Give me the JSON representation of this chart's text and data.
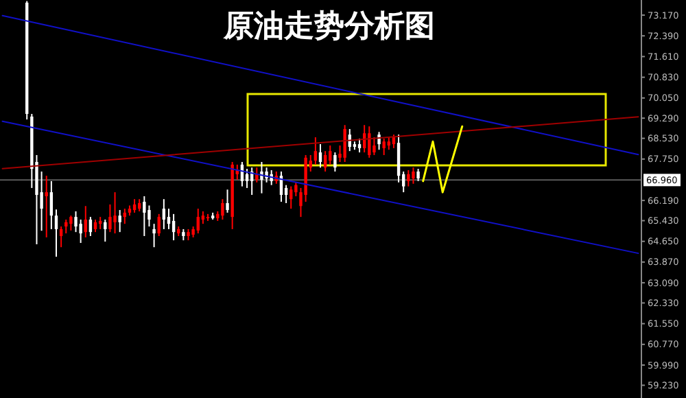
{
  "chart_data": {
    "type": "candlestick",
    "title": "原油走势分析图",
    "categories": [
      null,
      null,
      null,
      null,
      null,
      null,
      null,
      null,
      null,
      null,
      null,
      null,
      null,
      null,
      null,
      null,
      null,
      null,
      null,
      null,
      null,
      null,
      null,
      null,
      null,
      null,
      null,
      null,
      null,
      null,
      null,
      null,
      null,
      null,
      null,
      null,
      null,
      null,
      null,
      null,
      null,
      null,
      null,
      null,
      null,
      null,
      null,
      null,
      null,
      null,
      null,
      null,
      null,
      null,
      null,
      null,
      null,
      null,
      null,
      null,
      null,
      null,
      null,
      null,
      null,
      null,
      null,
      null,
      null,
      null,
      null,
      null,
      null,
      null,
      null,
      null,
      null,
      null,
      null,
      null,
      null,
      null,
      null,
      null,
      null,
      null,
      null,
      null,
      null,
      null,
      null,
      null,
      null,
      null,
      null,
      null,
      null,
      null,
      null,
      null,
      null,
      null,
      null,
      null,
      null,
      null,
      null,
      null,
      null,
      null,
      null,
      null,
      null,
      null,
      null,
      null,
      null,
      null,
      null,
      null,
      null,
      null,
      null,
      null,
      null,
      null,
      null,
      null,
      null,
      null,
      null
    ],
    "ohlc": [
      null,
      null,
      null,
      null,
      null,
      [
        73.64,
        73.7,
        69.24,
        69.45
      ],
      [
        69.35,
        69.45,
        66.66,
        67.38
      ],
      [
        67.64,
        67.9,
        64.54,
        66.4
      ],
      [
        66.5,
        67.28,
        65.05,
        65.88
      ],
      [
        66.35,
        67.12,
        64.8,
        66.5
      ],
      [
        66.5,
        66.92,
        65.11,
        65.62
      ],
      [
        65.62,
        65.85,
        64.07,
        65.11
      ],
      [
        64.85,
        65.21,
        64.43,
        65.11
      ],
      [
        65.21,
        65.47,
        64.95,
        65.37
      ],
      [
        65.31,
        65.62,
        65.06,
        65.57
      ],
      [
        65.57,
        65.78,
        65.0,
        65.21
      ],
      [
        65.31,
        65.47,
        64.59,
        64.95
      ],
      [
        65.0,
        65.98,
        64.8,
        65.47
      ],
      [
        65.47,
        65.57,
        64.85,
        65.0
      ],
      [
        65.11,
        65.47,
        65.0,
        65.37
      ],
      [
        65.31,
        65.57,
        65.11,
        65.42
      ],
      [
        65.37,
        65.47,
        64.64,
        65.11
      ],
      [
        65.11,
        66.04,
        65.0,
        65.57
      ],
      [
        65.37,
        66.5,
        64.95,
        65.62
      ],
      [
        65.62,
        65.83,
        65.0,
        65.37
      ],
      [
        65.57,
        65.88,
        65.31,
        65.73
      ],
      [
        65.73,
        66.0,
        65.62,
        65.88
      ],
      [
        65.83,
        66.24,
        65.73,
        66.04
      ],
      [
        65.88,
        66.24,
        65.78,
        66.09
      ],
      [
        66.14,
        66.35,
        64.85,
        65.73
      ],
      [
        65.83,
        66.0,
        65.21,
        65.47
      ],
      [
        65.11,
        65.31,
        64.43,
        64.95
      ],
      [
        64.95,
        65.68,
        64.85,
        65.57
      ],
      [
        65.88,
        66.24,
        65.11,
        65.47
      ],
      [
        65.57,
        65.88,
        65.11,
        65.31
      ],
      [
        65.42,
        65.68,
        64.69,
        65.0
      ],
      [
        64.95,
        65.21,
        64.85,
        65.11
      ],
      [
        65.0,
        65.11,
        64.69,
        64.85
      ],
      [
        64.85,
        65.11,
        64.69,
        65.0
      ],
      [
        64.9,
        65.21,
        64.8,
        65.11
      ],
      [
        65.06,
        65.88,
        64.95,
        65.57
      ],
      [
        65.47,
        65.78,
        65.31,
        65.62
      ],
      [
        65.52,
        65.68,
        65.42,
        65.57
      ],
      [
        65.62,
        65.73,
        65.47,
        65.52
      ],
      [
        65.52,
        65.78,
        65.42,
        65.68
      ],
      [
        65.62,
        66.24,
        65.47,
        66.09
      ],
      [
        66.09,
        66.6,
        65.73,
        65.83
      ],
      [
        65.57,
        67.64,
        65.11,
        67.54
      ],
      [
        67.18,
        67.54,
        66.97,
        67.33
      ],
      [
        67.54,
        67.64,
        66.72,
        66.92
      ],
      [
        67.18,
        67.38,
        66.66,
        66.92
      ],
      [
        67.28,
        67.43,
        66.4,
        66.92
      ],
      [
        66.97,
        67.43,
        66.87,
        67.18
      ],
      [
        67.28,
        67.64,
        66.46,
        66.97
      ],
      [
        67.28,
        67.43,
        66.87,
        67.02
      ],
      [
        67.18,
        67.33,
        66.77,
        66.92
      ],
      [
        66.92,
        67.28,
        66.82,
        67.12
      ],
      [
        67.12,
        67.28,
        66.14,
        66.4
      ],
      [
        66.66,
        66.77,
        66.09,
        66.4
      ],
      [
        66.24,
        66.72,
        65.88,
        66.6
      ],
      [
        66.5,
        66.87,
        66.35,
        66.77
      ],
      [
        65.98,
        66.66,
        65.57,
        66.5
      ],
      [
        66.4,
        67.9,
        66.14,
        67.8
      ],
      [
        67.43,
        67.9,
        67.28,
        67.69
      ],
      [
        67.69,
        68.57,
        67.54,
        68.05
      ],
      [
        68.0,
        68.31,
        67.43,
        67.64
      ],
      [
        67.43,
        68.05,
        67.28,
        67.9
      ],
      [
        67.69,
        68.26,
        67.54,
        68.05
      ],
      [
        67.9,
        68.0,
        67.28,
        67.43
      ],
      [
        67.8,
        68.26,
        67.64,
        67.95
      ],
      [
        67.8,
        69.03,
        67.64,
        68.88
      ],
      [
        68.67,
        68.88,
        68.05,
        68.21
      ],
      [
        68.31,
        68.41,
        68.1,
        68.21
      ],
      [
        68.31,
        68.52,
        68.0,
        68.16
      ],
      [
        68.16,
        69.03,
        68.0,
        68.72
      ],
      [
        67.9,
        68.98,
        67.8,
        68.72
      ],
      [
        68.0,
        68.57,
        67.9,
        68.26
      ],
      [
        68.67,
        68.77,
        68.1,
        68.31
      ],
      [
        68.16,
        68.52,
        67.9,
        68.41
      ],
      [
        68.26,
        68.57,
        68.1,
        68.41
      ],
      [
        68.31,
        68.67,
        68.16,
        68.57
      ],
      [
        68.36,
        68.67,
        66.87,
        67.12
      ],
      [
        67.18,
        67.28,
        66.5,
        66.72
      ],
      [
        66.92,
        67.33,
        66.72,
        67.18
      ],
      [
        67.02,
        67.43,
        66.82,
        67.28
      ],
      [
        67.28,
        67.38,
        66.92,
        67.02
      ],
      null,
      null,
      null,
      null,
      null,
      null,
      null,
      null,
      null,
      null,
      null,
      null,
      null,
      null,
      null,
      null,
      null,
      null,
      null,
      null,
      null,
      null,
      null,
      null,
      null,
      null,
      null,
      null,
      null,
      null,
      null,
      null,
      null,
      null,
      null,
      null,
      null,
      null,
      null,
      null,
      null,
      null,
      null,
      null,
      null
    ],
    "colors": [
      null,
      null,
      null,
      null,
      null,
      "#ffffff",
      "#ffffff",
      "#ffffff",
      "#ffffff",
      "#ff0000",
      "#ffffff",
      "#ffffff",
      "#ff0000",
      "#ff0000",
      "#ff0000",
      "#ffffff",
      "#ffffff",
      "#ff0000",
      "#ffffff",
      "#ff0000",
      "#ff0000",
      "#ffffff",
      "#ff0000",
      "#ff0000",
      "#ffffff",
      "#ff0000",
      "#ff0000",
      "#ff0000",
      "#ff0000",
      "#ffffff",
      "#ffffff",
      "#ffffff",
      "#ff0000",
      "#ffffff",
      "#ffffff",
      "#ffffff",
      "#ff0000",
      "#ffffff",
      "#ff0000",
      "#ff0000",
      "#ff0000",
      "#ff0000",
      "#ff0000",
      "#ffffff",
      "#ff0000",
      "#ff0000",
      "#ffffff",
      "#ff0000",
      "#ff0000",
      "#ffffff",
      "#ffffff",
      "#ffffff",
      "#ff0000",
      "#ffffff",
      "#ffffff",
      "#ffffff",
      "#ff0000",
      "#ffffff",
      "#ffffff",
      "#ff0000",
      "#ff0000",
      "#ff0000",
      "#ff0000",
      "#ff0000",
      "#ff0000",
      "#ffffff",
      "#ff0000",
      "#ff0000",
      "#ffffff",
      "#ff0000",
      "#ff0000",
      "#ffffff",
      "#ffffff",
      "#ffffff",
      "#ff0000",
      "#ff0000",
      "#ff0000",
      "#ffffff",
      "#ff0000",
      "#ff0000",
      "#ff0000",
      "#ffffff",
      "#ffffff",
      "#ff0000",
      "#ff0000",
      "#ffffff",
      null,
      null,
      null,
      null,
      null,
      null,
      null,
      null,
      null,
      null,
      null,
      null,
      null,
      null,
      null,
      null,
      null,
      null,
      null,
      null,
      null,
      null,
      null,
      null,
      null,
      null,
      null,
      null,
      null,
      null,
      null,
      null,
      null,
      null,
      null,
      null,
      null,
      null,
      null,
      null,
      null,
      null,
      null,
      null,
      null
    ],
    "series": [
      {
        "type": "line",
        "color": "#1010c8",
        "values": [
          73.15,
          null,
          null,
          null,
          null,
          null,
          null,
          null,
          null,
          null,
          null,
          null,
          null,
          null,
          null,
          null,
          null,
          null,
          null,
          null,
          null,
          null,
          null,
          null,
          null,
          null,
          null,
          null,
          null,
          null,
          null,
          null,
          null,
          null,
          null,
          null,
          null,
          null,
          null,
          null,
          null,
          null,
          null,
          null,
          null,
          null,
          null,
          null,
          null,
          null,
          null,
          null,
          null,
          null,
          null,
          null,
          null,
          null,
          null,
          null,
          null,
          null,
          null,
          null,
          null,
          null,
          null,
          null,
          null,
          null,
          null,
          null,
          null,
          null,
          null,
          null,
          null,
          null,
          null,
          null,
          null,
          null,
          null,
          null,
          null,
          null,
          null,
          null,
          null,
          null,
          null,
          null,
          null,
          null,
          null,
          null,
          null,
          null,
          null,
          null,
          null,
          null,
          null,
          null,
          null,
          null,
          null,
          null,
          null,
          null,
          null,
          null,
          null,
          null,
          null,
          null,
          null,
          null,
          null,
          null,
          null,
          null,
          null,
          null,
          null,
          null,
          null,
          null,
          null,
          null,
          67.92
        ]
      },
      {
        "type": "line",
        "color": "#1010c8",
        "values": [
          69.17,
          null,
          null,
          null,
          null,
          null,
          null,
          null,
          null,
          null,
          null,
          null,
          null,
          null,
          null,
          null,
          null,
          null,
          null,
          null,
          null,
          null,
          null,
          null,
          null,
          null,
          null,
          null,
          null,
          null,
          null,
          null,
          null,
          null,
          null,
          null,
          null,
          null,
          null,
          null,
          null,
          null,
          null,
          null,
          null,
          null,
          null,
          null,
          null,
          null,
          null,
          null,
          null,
          null,
          null,
          null,
          null,
          null,
          null,
          null,
          null,
          null,
          null,
          null,
          null,
          null,
          null,
          null,
          null,
          null,
          null,
          null,
          null,
          null,
          null,
          null,
          null,
          null,
          null,
          null,
          null,
          null,
          null,
          null,
          null,
          null,
          null,
          null,
          null,
          null,
          null,
          null,
          null,
          null,
          null,
          null,
          null,
          null,
          null,
          null,
          null,
          null,
          null,
          null,
          null,
          null,
          null,
          null,
          null,
          null,
          null,
          null,
          null,
          null,
          null,
          null,
          null,
          null,
          null,
          null,
          null,
          null,
          null,
          null,
          null,
          null,
          null,
          null,
          null,
          null,
          64.2
        ]
      },
      {
        "type": "line",
        "color": "#a00000",
        "values": [
          67.39,
          null,
          null,
          null,
          null,
          null,
          null,
          null,
          null,
          null,
          null,
          null,
          null,
          null,
          null,
          null,
          null,
          null,
          null,
          null,
          null,
          null,
          null,
          null,
          null,
          null,
          null,
          null,
          null,
          null,
          null,
          null,
          null,
          null,
          null,
          null,
          null,
          null,
          null,
          null,
          null,
          null,
          null,
          null,
          null,
          null,
          null,
          null,
          null,
          null,
          null,
          null,
          null,
          null,
          null,
          null,
          null,
          null,
          null,
          null,
          null,
          null,
          null,
          null,
          null,
          null,
          null,
          null,
          null,
          null,
          null,
          null,
          null,
          null,
          null,
          null,
          null,
          null,
          null,
          null,
          null,
          null,
          null,
          null,
          null,
          null,
          null,
          null,
          null,
          null,
          null,
          null,
          null,
          null,
          null,
          null,
          null,
          null,
          null,
          null,
          null,
          null,
          null,
          null,
          null,
          null,
          null,
          null,
          null,
          null,
          null,
          null,
          null,
          null,
          null,
          null,
          null,
          null,
          null,
          null,
          null,
          null,
          null,
          null,
          null,
          null,
          null,
          null,
          null,
          null,
          69.34
        ]
      },
      {
        "type": "line",
        "color": "#ffff00",
        "values": [
          null,
          null,
          null,
          null,
          null,
          null,
          null,
          null,
          null,
          null,
          null,
          null,
          null,
          null,
          null,
          null,
          null,
          null,
          null,
          null,
          null,
          null,
          null,
          null,
          null,
          null,
          null,
          null,
          null,
          null,
          null,
          null,
          null,
          null,
          null,
          null,
          null,
          null,
          null,
          null,
          null,
          null,
          null,
          null,
          null,
          null,
          null,
          null,
          null,
          null,
          null,
          null,
          null,
          null,
          null,
          null,
          null,
          null,
          null,
          null,
          null,
          null,
          null,
          null,
          null,
          null,
          null,
          null,
          null,
          null,
          null,
          null,
          null,
          null,
          null,
          null,
          null,
          null,
          null,
          null,
          null,
          null,
          null,
          null,
          null,
          null,
          66.92,
          null,
          68.41,
          null,
          66.5,
          null,
          null,
          null,
          68.98,
          null,
          null,
          null,
          null,
          null,
          null,
          null,
          null,
          null,
          null,
          null,
          null,
          null,
          null,
          null,
          null,
          null,
          null,
          null,
          null,
          null,
          null,
          null,
          null,
          null,
          null,
          null,
          null,
          null,
          null,
          null,
          null,
          null,
          null,
          null,
          null
        ]
      }
    ],
    "ref_lines": [
      {
        "axis": "y",
        "value": 66.96,
        "label": "66.960",
        "color": "#5a5a5a"
      }
    ],
    "ylim": [
      58.75,
      73.74
    ],
    "yticks": [
      {
        "value": 73.17,
        "label": "73.170"
      },
      {
        "value": 72.39,
        "label": "72.390"
      },
      {
        "value": 71.61,
        "label": "71.610"
      },
      {
        "value": 70.83,
        "label": "70.830"
      },
      {
        "value": 70.05,
        "label": "70.050"
      },
      {
        "value": 69.29,
        "label": "69.290"
      },
      {
        "value": 68.53,
        "label": "68.530"
      },
      {
        "value": 67.75,
        "label": "67.750"
      },
      {
        "value": 66.19,
        "label": "66.190"
      },
      {
        "value": 65.43,
        "label": "65.430"
      },
      {
        "value": 64.65,
        "label": "64.650"
      },
      {
        "value": 63.87,
        "label": "63.870"
      },
      {
        "value": 63.09,
        "label": "63.090"
      },
      {
        "value": 62.33,
        "label": "62.330"
      },
      {
        "value": 61.55,
        "label": "61.550"
      },
      {
        "value": 60.77,
        "label": "60.770"
      },
      {
        "value": 59.99,
        "label": "59.990"
      },
      {
        "value": 59.23,
        "label": "59.230"
      }
    ],
    "tick_labels": "y",
    "grid": false
  }
}
